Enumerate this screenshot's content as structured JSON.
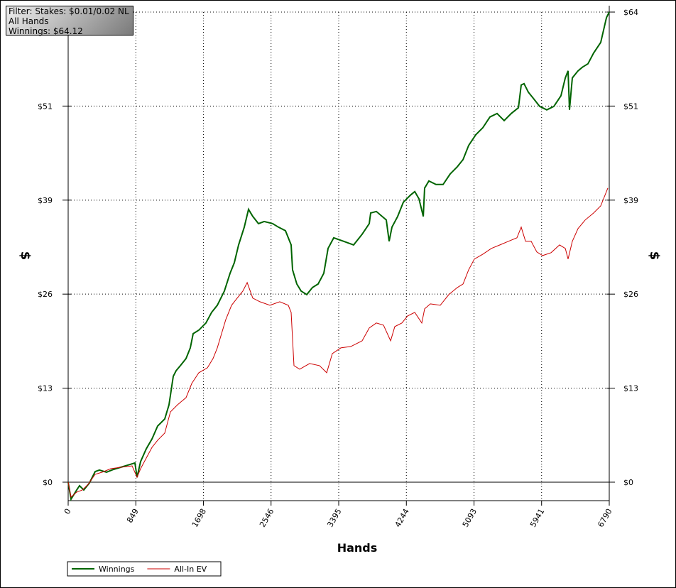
{
  "chart_data": {
    "type": "line",
    "annotations": [
      "Filter: Stakes: $0.01/0.02 NL",
      "All Hands",
      "Winnings: $64.12"
    ],
    "xlabel": "Hands",
    "ylabel": "$",
    "xlim": [
      0,
      6790
    ],
    "xticks": [
      0,
      849,
      1698,
      2546,
      3395,
      4244,
      5093,
      5941,
      6790
    ],
    "ylim": [
      -2.52,
      64.12
    ],
    "yticks": [
      {
        "value": 0,
        "label": "$0"
      },
      {
        "value": 12.82,
        "label": "$13"
      },
      {
        "value": 25.65,
        "label": "$26"
      },
      {
        "value": 38.47,
        "label": "$39"
      },
      {
        "value": 51.3,
        "label": "$51"
      },
      {
        "value": 64.12,
        "label": "$64"
      }
    ],
    "grid": true,
    "legend": "bottom-left",
    "series": [
      {
        "name": "Winnings",
        "color": "#006400",
        "x": [
          0,
          36,
          107,
          143,
          196,
          267,
          339,
          392,
          481,
          570,
          659,
          749,
          838,
          864,
          909,
          980,
          1052,
          1123,
          1212,
          1265,
          1319,
          1354,
          1408,
          1479,
          1533,
          1568,
          1640,
          1729,
          1800,
          1871,
          1960,
          2032,
          2085,
          2139,
          2210,
          2263,
          2317,
          2388,
          2459,
          2566,
          2638,
          2727,
          2798,
          2816,
          2869,
          2923,
          2994,
          3065,
          3137,
          3208,
          3261,
          3333,
          3457,
          3582,
          3689,
          3778,
          3796,
          3867,
          3992,
          4028,
          4063,
          4135,
          4206,
          4295,
          4349,
          4402,
          4456,
          4473,
          4527,
          4616,
          4705,
          4794,
          4883,
          4955,
          5026,
          5115,
          5204,
          5293,
          5382,
          5471,
          5560,
          5650,
          5685,
          5721,
          5774,
          5846,
          5917,
          6006,
          6095,
          6184,
          6238,
          6273,
          6291,
          6327,
          6398,
          6452,
          6523,
          6594,
          6683,
          6755,
          6790
        ],
        "values": [
          0,
          -2.33,
          -1.07,
          -0.48,
          -1.07,
          -0.1,
          1.45,
          1.65,
          1.36,
          1.74,
          2.03,
          2.33,
          2.62,
          0.68,
          2.81,
          4.55,
          5.91,
          7.66,
          8.62,
          10.56,
          14.44,
          15.21,
          15.89,
          16.86,
          18.31,
          20.25,
          20.74,
          21.71,
          23.16,
          24.13,
          26.07,
          28.49,
          29.94,
          32.36,
          34.79,
          37.21,
          36.24,
          35.27,
          35.56,
          35.27,
          34.79,
          34.3,
          32.36,
          28.97,
          27.03,
          26.07,
          25.58,
          26.55,
          27.03,
          28.49,
          31.88,
          33.33,
          32.85,
          32.36,
          33.82,
          35.27,
          36.72,
          36.92,
          35.76,
          32.85,
          34.79,
          36.24,
          38.18,
          39.15,
          39.63,
          38.66,
          36.24,
          40.12,
          41.09,
          40.6,
          40.6,
          42.05,
          43.02,
          43.99,
          45.93,
          47.38,
          48.35,
          49.81,
          50.29,
          49.32,
          50.29,
          51.07,
          54.17,
          54.36,
          53.2,
          52.23,
          51.26,
          50.78,
          51.26,
          52.71,
          55.14,
          56.1,
          50.78,
          55.14,
          56.1,
          56.59,
          57.07,
          58.53,
          59.98,
          63.37,
          64.12
        ]
      },
      {
        "name": "All-In EV",
        "color": "#cc0000",
        "x": [
          0,
          36,
          107,
          178,
          250,
          339,
          428,
          535,
          659,
          802,
          864,
          909,
          980,
          1052,
          1123,
          1212,
          1283,
          1372,
          1479,
          1551,
          1640,
          1747,
          1818,
          1871,
          1925,
          1978,
          2050,
          2121,
          2192,
          2246,
          2317,
          2406,
          2531,
          2655,
          2762,
          2798,
          2834,
          2905,
          3030,
          3154,
          3244,
          3315,
          3422,
          3547,
          3689,
          3778,
          3867,
          3957,
          4046,
          4099,
          4188,
          4259,
          4349,
          4438,
          4473,
          4545,
          4669,
          4776,
          4883,
          4955,
          5026,
          5097,
          5204,
          5311,
          5418,
          5525,
          5632,
          5685,
          5739,
          5810,
          5881,
          5953,
          6060,
          6166,
          6238,
          6273,
          6327,
          6398,
          6488,
          6594,
          6683,
          6772
        ],
        "values": [
          0,
          -2.03,
          -1.36,
          -1.07,
          -0.29,
          1.07,
          1.36,
          1.84,
          2.03,
          2.23,
          0.68,
          1.84,
          3.29,
          4.75,
          5.72,
          6.69,
          9.59,
          10.56,
          11.53,
          13.47,
          14.92,
          15.6,
          16.86,
          18.31,
          20.25,
          22.19,
          24.13,
          25.1,
          26.07,
          27.23,
          25.1,
          24.61,
          24.13,
          24.61,
          24.13,
          23.16,
          15.89,
          15.41,
          16.18,
          15.89,
          14.92,
          17.54,
          18.31,
          18.51,
          19.28,
          21.03,
          21.71,
          21.41,
          19.28,
          21.22,
          21.71,
          22.67,
          23.16,
          21.71,
          23.64,
          24.32,
          24.13,
          25.58,
          26.55,
          27.03,
          28.97,
          30.43,
          31.1,
          31.88,
          32.36,
          32.85,
          33.33,
          34.79,
          32.85,
          32.85,
          31.4,
          30.91,
          31.3,
          32.36,
          31.88,
          30.43,
          32.85,
          34.59,
          35.76,
          36.72,
          37.69,
          40.12
        ]
      }
    ]
  }
}
